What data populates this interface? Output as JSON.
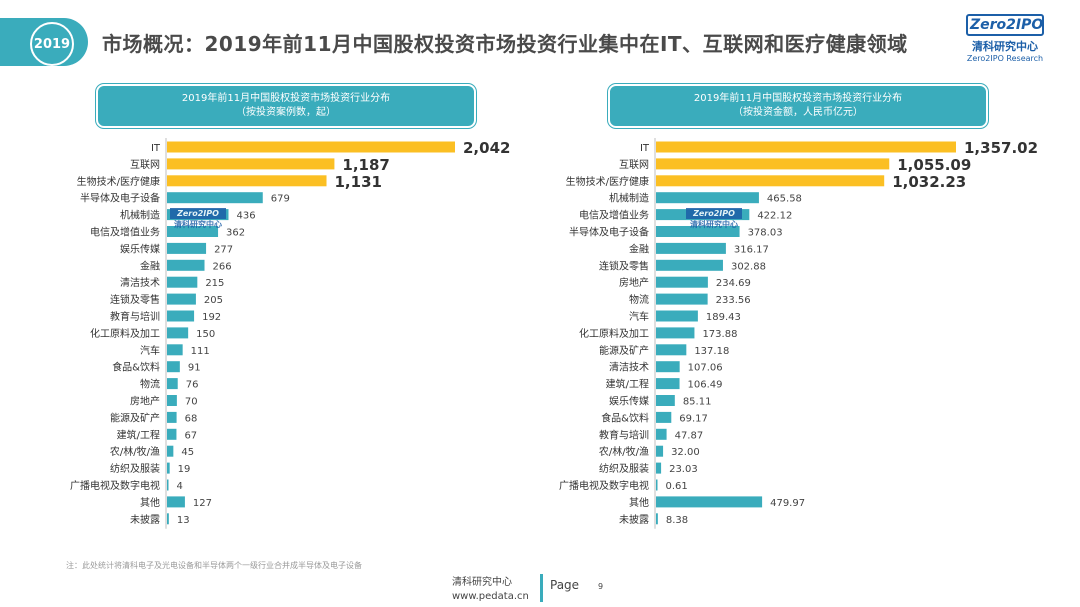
{
  "header": {
    "year": "2019",
    "title": "市场概况：2019年前11月中国股权投资市场投资行业集中在IT、互联网和医疗健康领域",
    "logo_mark": "Zero2IPO",
    "logo_cn": "清科研究中心",
    "logo_en": "Zero2IPO Research"
  },
  "colors": {
    "teal": "#3aacbc",
    "gold": "#fbbf23"
  },
  "chart_data": [
    {
      "type": "bar",
      "orientation": "horizontal",
      "title": "2019年前11月中国股权投资市场投资行业分布",
      "subtitle": "（按投资案例数，起）",
      "categories": [
        "IT",
        "互联网",
        "生物技术/医疗健康",
        "半导体及电子设备",
        "机械制造",
        "电信及增值业务",
        "娱乐传媒",
        "金融",
        "清洁技术",
        "连锁及零售",
        "教育与培训",
        "化工原料及加工",
        "汽车",
        "食品&饮料",
        "物流",
        "房地产",
        "能源及矿产",
        "建筑/工程",
        "农/林/牧/渔",
        "纺织及服装",
        "广播电视及数字电视",
        "其他",
        "未披露"
      ],
      "labels": [
        "2,042",
        "1,187",
        "1,131",
        "679",
        "436",
        "362",
        "277",
        "266",
        "215",
        "205",
        "192",
        "150",
        "111",
        "91",
        "76",
        "70",
        "68",
        "67",
        "45",
        "19",
        "4",
        "127",
        "13"
      ],
      "values": [
        2042,
        1187,
        1131,
        679,
        436,
        362,
        277,
        266,
        215,
        205,
        192,
        150,
        111,
        91,
        76,
        70,
        68,
        67,
        45,
        19,
        4,
        127,
        13
      ],
      "highlight_count": 3
    },
    {
      "type": "bar",
      "orientation": "horizontal",
      "title": "2019年前11月中国股权投资市场投资行业分布",
      "subtitle": "（按投资金额，人民币亿元）",
      "categories": [
        "IT",
        "互联网",
        "生物技术/医疗健康",
        "机械制造",
        "电信及增值业务",
        "半导体及电子设备",
        "金融",
        "连锁及零售",
        "房地产",
        "物流",
        "汽车",
        "化工原料及加工",
        "能源及矿产",
        "清洁技术",
        "建筑/工程",
        "娱乐传媒",
        "食品&饮料",
        "教育与培训",
        "农/林/牧/渔",
        "纺织及服装",
        "广播电视及数字电视",
        "其他",
        "未披露"
      ],
      "labels": [
        "1,357.02",
        "1,055.09",
        "1,032.23",
        "465.58",
        "422.12",
        "378.03",
        "316.17",
        "302.88",
        "234.69",
        "233.56",
        "189.43",
        "173.88",
        "137.18",
        "107.06",
        "106.49",
        "85.11",
        "69.17",
        "47.87",
        "32.00",
        "23.03",
        "0.61",
        "479.97",
        "8.38"
      ],
      "values": [
        1357.02,
        1055.09,
        1032.23,
        465.58,
        422.12,
        378.03,
        316.17,
        302.88,
        234.69,
        233.56,
        189.43,
        173.88,
        137.18,
        107.06,
        106.49,
        85.11,
        69.17,
        47.87,
        32.0,
        23.03,
        0.61,
        479.97,
        8.38
      ],
      "highlight_count": 3
    }
  ],
  "footer": {
    "note": "注：此处统计将清科电子及光电设备和半导体两个一级行业合并成半导体及电子设备",
    "brand_cn": "清科研究中心",
    "url": "www.pedata.cn",
    "page_label": "Page",
    "page_number": "9"
  }
}
